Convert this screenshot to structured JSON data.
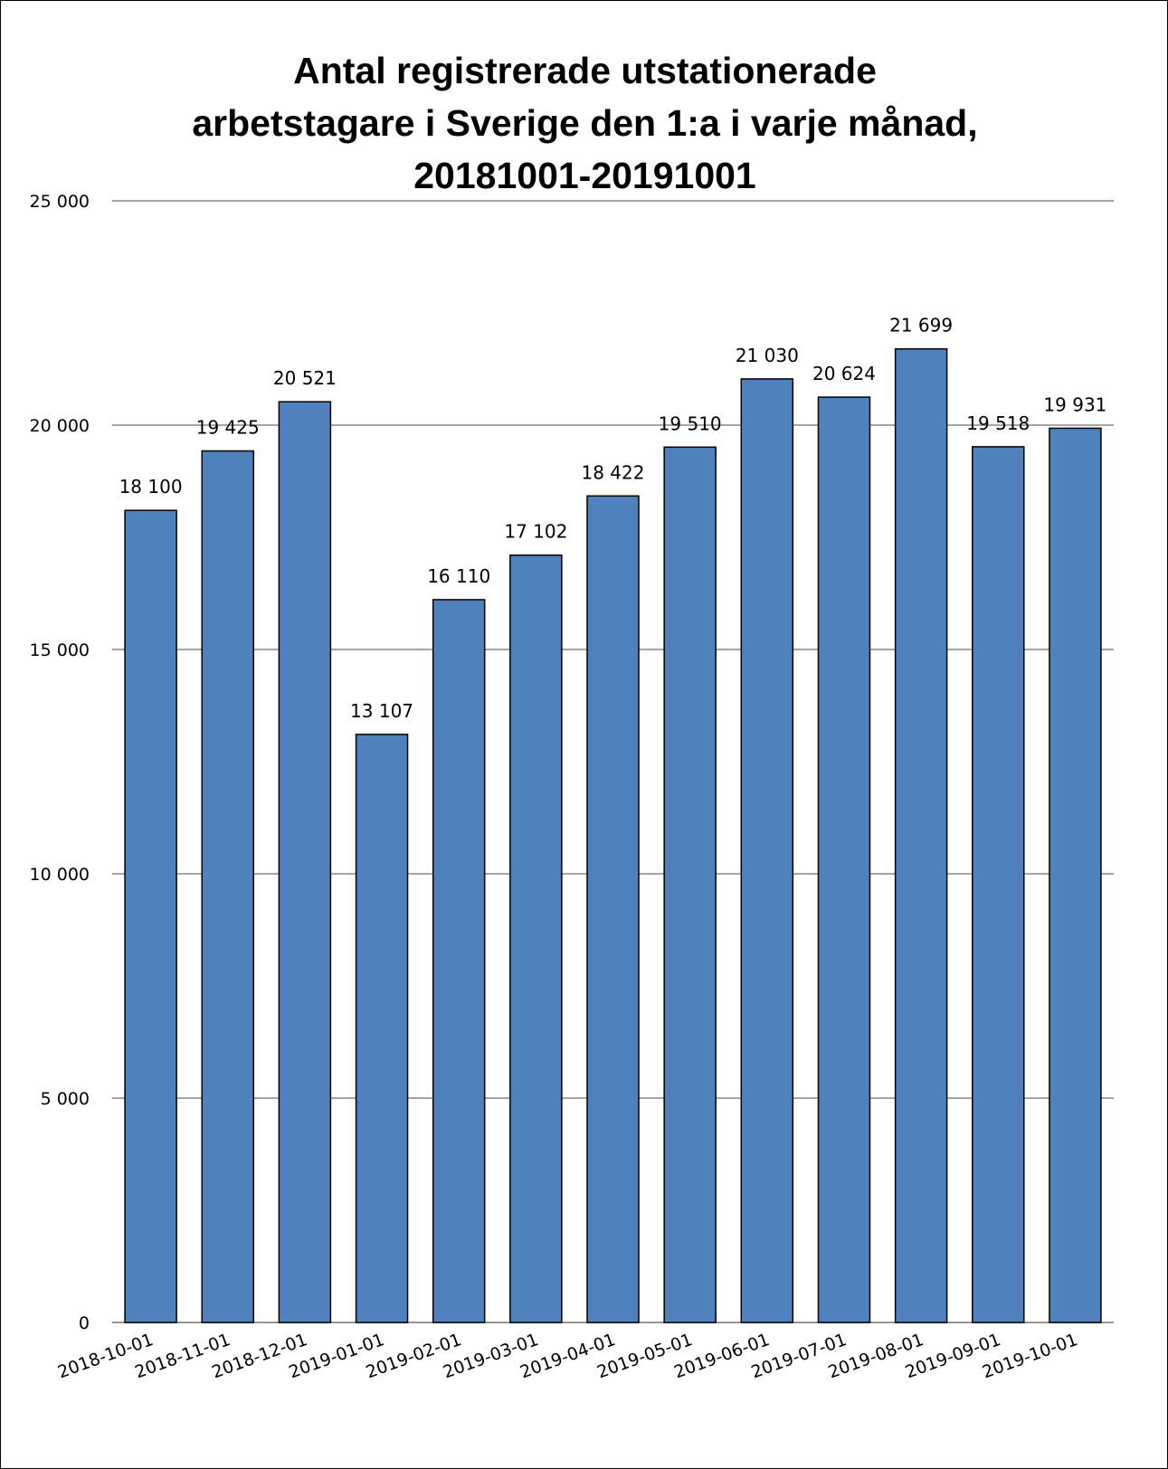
{
  "chart_data": {
    "type": "bar",
    "title_lines": [
      "Antal registrerade utstationerade",
      "arbetstagare i Sverige den 1:a i varje månad,",
      "20181001-20191001"
    ],
    "categories": [
      "2018-10-01",
      "2018-11-01",
      "2018-12-01",
      "2019-01-01",
      "2019-02-01",
      "2019-03-01",
      "2019-04-01",
      "2019-05-01",
      "2019-06-01",
      "2019-07-01",
      "2019-08-01",
      "2019-09-01",
      "2019-10-01"
    ],
    "values": [
      18100,
      19425,
      20521,
      13107,
      16110,
      17102,
      18422,
      19510,
      21030,
      20624,
      21699,
      19518,
      19931
    ],
    "value_labels": [
      "18 100",
      "19 425",
      "20 521",
      "13 107",
      "16 110",
      "17 102",
      "18 422",
      "19 510",
      "21 030",
      "20 624",
      "21 699",
      "19 518",
      "19 931"
    ],
    "y_ticks": [
      0,
      5000,
      10000,
      15000,
      20000,
      25000
    ],
    "y_tick_labels": [
      "0",
      "5 000",
      "10 000",
      "15 000",
      "20 000",
      "25 000"
    ],
    "ylim": [
      0,
      25000
    ],
    "grid": true,
    "legend": "none",
    "bar_color": "#4F81BD",
    "bar_edge_color": "#000000",
    "grid_color": "#868686"
  }
}
